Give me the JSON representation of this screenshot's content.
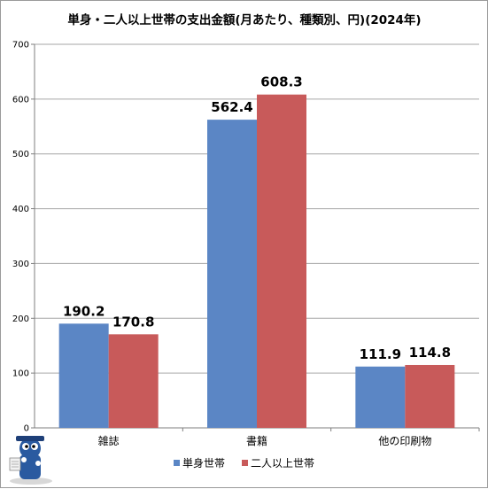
{
  "chart_data": {
    "type": "bar",
    "title": "単身・二人以上世帯の支出金額(月あたり、種類別、円)(2024年)",
    "categories": [
      "雑誌",
      "書籍",
      "他の印刷物"
    ],
    "series": [
      {
        "name": "単身世帯",
        "values": [
          190.2,
          562.4,
          111.9
        ],
        "color": "#5b86c5"
      },
      {
        "name": "二人以上世帯",
        "values": [
          170.8,
          608.3,
          114.8
        ],
        "color": "#c85a5a"
      }
    ],
    "data_labels": [
      [
        "190.2",
        "562.4",
        "111.9"
      ],
      [
        "170.8",
        "608.3",
        "114.8"
      ]
    ],
    "yticks": [
      "0",
      "100",
      "200",
      "300",
      "400",
      "500",
      "600",
      "700"
    ],
    "ylim": [
      0,
      700
    ],
    "grid": true,
    "legend_position": "bottom"
  },
  "mascot": {
    "icon": "mascot-icon"
  }
}
